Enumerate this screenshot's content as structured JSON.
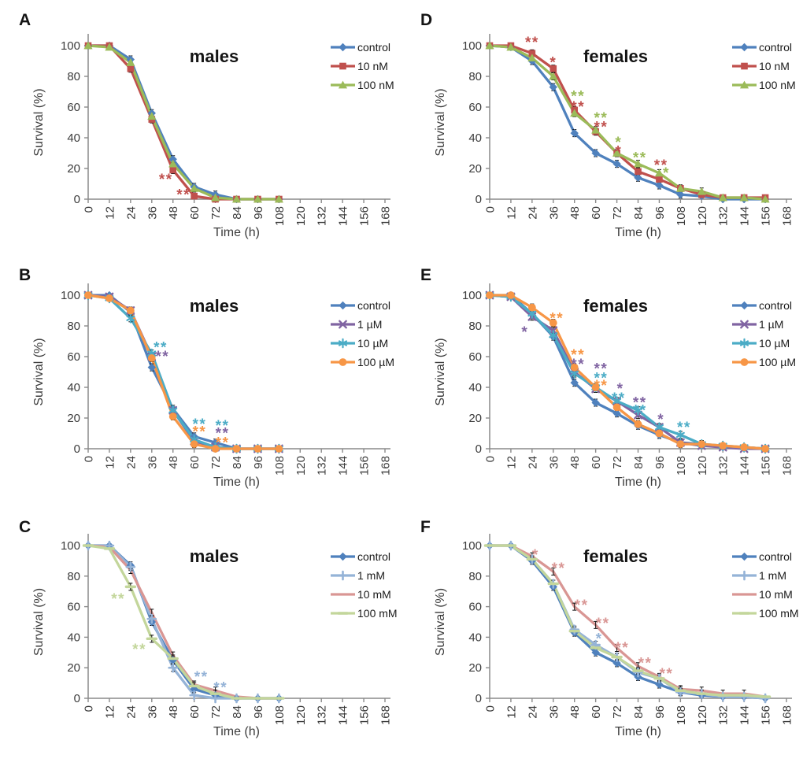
{
  "figure": {
    "type": "multi-panel-survival-figure",
    "panel_letters": [
      "A",
      "B",
      "C",
      "D",
      "E",
      "F"
    ]
  },
  "palette": {
    "blue": "#4F81BD",
    "red": "#C0504D",
    "green": "#9BBB59",
    "purple": "#8064A2",
    "teal": "#4BACC6",
    "orange": "#F79646",
    "lightblue": "#95B3D7",
    "salmon": "#D99694",
    "lightgreen": "#C3D69B",
    "axis": "#8a8a8a",
    "tick_text": "#3b3b3b",
    "title_text": "#141414",
    "errorbar": "#111111"
  },
  "chart_data": [
    {
      "panel": "A",
      "type": "line",
      "title": "males",
      "xlabel": "Time (h)",
      "ylabel": "Survival (%)",
      "xlim": [
        0,
        168
      ],
      "ylim": [
        0,
        100
      ],
      "grid": false,
      "legend_position": "top-right",
      "x_ticks": [
        0,
        12,
        24,
        36,
        48,
        60,
        72,
        84,
        96,
        108,
        120,
        132,
        144,
        156,
        168
      ],
      "y_ticks": [
        0,
        20,
        40,
        60,
        80,
        100
      ],
      "x": [
        0,
        12,
        24,
        36,
        48,
        60,
        72,
        84,
        96,
        108
      ],
      "series": [
        {
          "name": "control",
          "color": "#4F81BD",
          "marker": "diamond",
          "values": [
            100,
            100,
            91,
            56,
            26,
            8,
            3,
            0,
            0,
            0
          ]
        },
        {
          "name": "10 nM",
          "color": "#C0504D",
          "marker": "square",
          "values": [
            100,
            100,
            85,
            52,
            19,
            2,
            0,
            0,
            0,
            0
          ]
        },
        {
          "name": "100 nM",
          "color": "#9BBB59",
          "marker": "triangle",
          "values": [
            100,
            99,
            89,
            54,
            23,
            7,
            1,
            0,
            0,
            0
          ]
        }
      ],
      "annotations": [
        {
          "text": "**",
          "color": "#C0504D",
          "x": 44,
          "y": 15
        },
        {
          "text": "**",
          "color": "#C0504D",
          "x": 54,
          "y": 5
        }
      ]
    },
    {
      "panel": "B",
      "type": "line",
      "title": "males",
      "xlabel": "Time (h)",
      "ylabel": "Survival (%)",
      "xlim": [
        0,
        168
      ],
      "ylim": [
        0,
        100
      ],
      "grid": false,
      "legend_position": "top-right",
      "x_ticks": [
        0,
        12,
        24,
        36,
        48,
        60,
        72,
        84,
        96,
        108,
        120,
        132,
        144,
        156,
        168
      ],
      "y_ticks": [
        0,
        20,
        40,
        60,
        80,
        100
      ],
      "x": [
        0,
        12,
        24,
        36,
        48,
        60,
        72,
        84,
        96,
        108
      ],
      "series": [
        {
          "name": "control",
          "color": "#4F81BD",
          "marker": "diamond",
          "values": [
            100,
            100,
            89,
            53,
            26,
            8,
            4,
            0,
            0,
            0
          ]
        },
        {
          "name": "1 µM",
          "color": "#8064A2",
          "marker": "x",
          "values": [
            100,
            99,
            90,
            60,
            25,
            5,
            1,
            0,
            0,
            0
          ]
        },
        {
          "name": "10 µM",
          "color": "#4BACC6",
          "marker": "asterisk",
          "values": [
            100,
            98,
            85,
            62,
            25,
            6,
            1,
            0,
            0,
            0
          ]
        },
        {
          "name": "100 µM",
          "color": "#F79646",
          "marker": "circle",
          "values": [
            100,
            98,
            90,
            59,
            21,
            3,
            0,
            0,
            0,
            0
          ]
        }
      ],
      "annotations": [
        {
          "text": "**",
          "color": "#4BACC6",
          "x": 41,
          "y": 68
        },
        {
          "text": "**",
          "color": "#8064A2",
          "x": 42,
          "y": 62
        },
        {
          "text": "**",
          "color": "#4BACC6",
          "x": 63,
          "y": 18
        },
        {
          "text": "**",
          "color": "#F79646",
          "x": 63,
          "y": 13
        },
        {
          "text": "**",
          "color": "#4BACC6",
          "x": 76,
          "y": 17
        },
        {
          "text": "**",
          "color": "#8064A2",
          "x": 76,
          "y": 12
        },
        {
          "text": "**",
          "color": "#F79646",
          "x": 76,
          "y": 6
        }
      ]
    },
    {
      "panel": "C",
      "type": "line",
      "title": "males",
      "xlabel": "Time (h)",
      "ylabel": "Survival (%)",
      "xlim": [
        0,
        168
      ],
      "ylim": [
        0,
        100
      ],
      "grid": false,
      "legend_position": "top-right",
      "x_ticks": [
        0,
        12,
        24,
        36,
        48,
        60,
        72,
        84,
        96,
        108,
        120,
        132,
        144,
        156,
        168
      ],
      "y_ticks": [
        0,
        20,
        40,
        60,
        80,
        100
      ],
      "x": [
        0,
        12,
        24,
        36,
        48,
        60,
        72,
        84,
        96,
        108
      ],
      "series": [
        {
          "name": "control",
          "color": "#4F81BD",
          "marker": "diamond",
          "values": [
            100,
            100,
            87,
            50,
            25,
            6,
            2,
            0,
            0,
            0
          ]
        },
        {
          "name": "1 mM",
          "color": "#95B3D7",
          "marker": "plus",
          "values": [
            100,
            100,
            86,
            52,
            20,
            2,
            0,
            0,
            0,
            0
          ]
        },
        {
          "name": "10 mM",
          "color": "#D99694",
          "marker": "none",
          "values": [
            100,
            99,
            84,
            56,
            28,
            9,
            5,
            1,
            0,
            0
          ]
        },
        {
          "name": "100 mM",
          "color": "#C3D69B",
          "marker": "dash",
          "values": [
            100,
            98,
            73,
            39,
            26,
            8,
            3,
            0,
            0,
            0
          ]
        }
      ],
      "annotations": [
        {
          "text": "**",
          "color": "#C3D69B",
          "x": 17,
          "y": 67
        },
        {
          "text": "**",
          "color": "#C3D69B",
          "x": 29,
          "y": 34
        },
        {
          "text": "**",
          "color": "#95B3D7",
          "x": 64,
          "y": 16
        },
        {
          "text": "**",
          "color": "#95B3D7",
          "x": 75,
          "y": 9
        }
      ]
    },
    {
      "panel": "D",
      "type": "line",
      "title": "females",
      "xlabel": "Time (h)",
      "ylabel": "Survival (%)",
      "xlim": [
        0,
        168
      ],
      "ylim": [
        0,
        100
      ],
      "grid": false,
      "legend_position": "top-right",
      "x_ticks": [
        0,
        12,
        24,
        36,
        48,
        60,
        72,
        84,
        96,
        108,
        120,
        132,
        144,
        156,
        168
      ],
      "y_ticks": [
        0,
        20,
        40,
        60,
        80,
        100
      ],
      "x": [
        0,
        12,
        24,
        36,
        48,
        60,
        72,
        84,
        96,
        108,
        120,
        132,
        144,
        156
      ],
      "series": [
        {
          "name": "control",
          "color": "#4F81BD",
          "marker": "diamond",
          "values": [
            100,
            99,
            90,
            73,
            43,
            30,
            23,
            14,
            9,
            3,
            2,
            0,
            0,
            0
          ]
        },
        {
          "name": "10 nM",
          "color": "#C0504D",
          "marker": "square",
          "values": [
            100,
            100,
            95,
            85,
            58,
            44,
            30,
            18,
            13,
            7,
            3,
            1,
            1,
            1
          ]
        },
        {
          "name": "100 nM",
          "color": "#9BBB59",
          "marker": "triangle",
          "values": [
            100,
            99,
            92,
            80,
            56,
            45,
            30,
            23,
            17,
            7,
            5,
            1,
            1,
            0
          ]
        }
      ],
      "annotations": [
        {
          "text": "**",
          "color": "#C0504D",
          "x": 24,
          "y": 104
        },
        {
          "text": "*",
          "color": "#C0504D",
          "x": 36,
          "y": 91
        },
        {
          "text": "**",
          "color": "#9BBB59",
          "x": 50,
          "y": 69
        },
        {
          "text": "**",
          "color": "#C0504D",
          "x": 50,
          "y": 62
        },
        {
          "text": "**",
          "color": "#9BBB59",
          "x": 63,
          "y": 55
        },
        {
          "text": "**",
          "color": "#C0504D",
          "x": 63,
          "y": 49
        },
        {
          "text": "*",
          "color": "#9BBB59",
          "x": 73,
          "y": 39
        },
        {
          "text": "*",
          "color": "#C0504D",
          "x": 73,
          "y": 33
        },
        {
          "text": "**",
          "color": "#9BBB59",
          "x": 85,
          "y": 29
        },
        {
          "text": "**",
          "color": "#C0504D",
          "x": 97,
          "y": 24
        },
        {
          "text": "*",
          "color": "#9BBB59",
          "x": 100,
          "y": 19
        }
      ]
    },
    {
      "panel": "E",
      "type": "line",
      "title": "females",
      "xlabel": "Time (h)",
      "ylabel": "Survival (%)",
      "xlim": [
        0,
        168
      ],
      "ylim": [
        0,
        100
      ],
      "grid": false,
      "legend_position": "top-right",
      "x_ticks": [
        0,
        12,
        24,
        36,
        48,
        60,
        72,
        84,
        96,
        108,
        120,
        132,
        144,
        156,
        168
      ],
      "y_ticks": [
        0,
        20,
        40,
        60,
        80,
        100
      ],
      "x": [
        0,
        12,
        24,
        36,
        48,
        60,
        72,
        84,
        96,
        108,
        120,
        132,
        144,
        156
      ],
      "series": [
        {
          "name": "control",
          "color": "#4F81BD",
          "marker": "diamond",
          "values": [
            100,
            100,
            88,
            73,
            43,
            30,
            23,
            15,
            9,
            4,
            3,
            1,
            1,
            0
          ]
        },
        {
          "name": "1 µM",
          "color": "#8064A2",
          "marker": "x",
          "values": [
            100,
            99,
            86,
            77,
            50,
            39,
            31,
            22,
            14,
            4,
            2,
            1,
            0,
            0
          ]
        },
        {
          "name": "10 µM",
          "color": "#4BACC6",
          "marker": "asterisk",
          "values": [
            100,
            99,
            88,
            74,
            49,
            40,
            31,
            25,
            14,
            9,
            3,
            2,
            1,
            0
          ]
        },
        {
          "name": "100 µM",
          "color": "#F79646",
          "marker": "circle",
          "values": [
            100,
            100,
            92,
            82,
            53,
            40,
            27,
            16,
            10,
            3,
            3,
            2,
            1,
            0
          ]
        }
      ],
      "annotations": [
        {
          "text": "*",
          "color": "#8064A2",
          "x": 20,
          "y": 78
        },
        {
          "text": "**",
          "color": "#F79646",
          "x": 38,
          "y": 87
        },
        {
          "text": "**",
          "color": "#F79646",
          "x": 50,
          "y": 63
        },
        {
          "text": "**",
          "color": "#8064A2",
          "x": 50,
          "y": 57
        },
        {
          "text": "**",
          "color": "#8064A2",
          "x": 63,
          "y": 54
        },
        {
          "text": "**",
          "color": "#4BACC6",
          "x": 63,
          "y": 48
        },
        {
          "text": "**",
          "color": "#F79646",
          "x": 63,
          "y": 43
        },
        {
          "text": "*",
          "color": "#8064A2",
          "x": 74,
          "y": 41
        },
        {
          "text": "**",
          "color": "#4BACC6",
          "x": 73,
          "y": 35
        },
        {
          "text": "**",
          "color": "#8064A2",
          "x": 85,
          "y": 32
        },
        {
          "text": "**",
          "color": "#4BACC6",
          "x": 85,
          "y": 27
        },
        {
          "text": "*",
          "color": "#8064A2",
          "x": 97,
          "y": 21
        },
        {
          "text": "**",
          "color": "#4BACC6",
          "x": 110,
          "y": 16
        }
      ]
    },
    {
      "panel": "F",
      "type": "line",
      "title": "females",
      "xlabel": "Time (h)",
      "ylabel": "Survival (%)",
      "xlim": [
        0,
        168
      ],
      "ylim": [
        0,
        100
      ],
      "grid": false,
      "legend_position": "top-right",
      "x_ticks": [
        0,
        12,
        24,
        36,
        48,
        60,
        72,
        84,
        96,
        108,
        120,
        132,
        144,
        156,
        168
      ],
      "y_ticks": [
        0,
        20,
        40,
        60,
        80,
        100
      ],
      "x": [
        0,
        12,
        24,
        36,
        48,
        60,
        72,
        84,
        96,
        108,
        120,
        132,
        144,
        156
      ],
      "series": [
        {
          "name": "control",
          "color": "#4F81BD",
          "marker": "diamond",
          "values": [
            100,
            100,
            90,
            73,
            43,
            30,
            23,
            14,
            9,
            4,
            2,
            1,
            1,
            0
          ]
        },
        {
          "name": "1 mM",
          "color": "#95B3D7",
          "marker": "plus",
          "values": [
            100,
            100,
            91,
            75,
            45,
            35,
            27,
            17,
            13,
            4,
            3,
            1,
            1,
            0
          ]
        },
        {
          "name": "10 mM",
          "color": "#D99694",
          "marker": "none",
          "values": [
            100,
            100,
            93,
            83,
            60,
            48,
            33,
            21,
            14,
            6,
            5,
            3,
            3,
            1
          ]
        },
        {
          "name": "100 mM",
          "color": "#C3D69B",
          "marker": "dash",
          "values": [
            100,
            100,
            91,
            75,
            44,
            33,
            27,
            18,
            13,
            5,
            3,
            2,
            2,
            1
          ]
        }
      ],
      "annotations": [
        {
          "text": "*",
          "color": "#D99694",
          "x": 26,
          "y": 96
        },
        {
          "text": "**",
          "color": "#D99694",
          "x": 39,
          "y": 87
        },
        {
          "text": "**",
          "color": "#D99694",
          "x": 52,
          "y": 63
        },
        {
          "text": "**",
          "color": "#D99694",
          "x": 64,
          "y": 51
        },
        {
          "text": "*",
          "color": "#95B3D7",
          "x": 62,
          "y": 41
        },
        {
          "text": "**",
          "color": "#D99694",
          "x": 75,
          "y": 35
        },
        {
          "text": "**",
          "color": "#D99694",
          "x": 88,
          "y": 25
        },
        {
          "text": "**",
          "color": "#D99694",
          "x": 100,
          "y": 18
        }
      ]
    }
  ]
}
